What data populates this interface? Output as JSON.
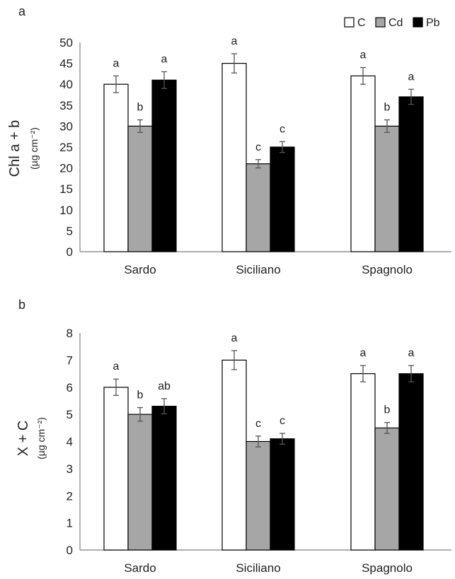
{
  "legend": {
    "items": [
      {
        "label": "C",
        "color": "#ffffff"
      },
      {
        "label": "Cd",
        "color": "#a6a6a6"
      },
      {
        "label": "Pb",
        "color": "#000000"
      }
    ]
  },
  "chart_data": [
    {
      "type": "bar",
      "panel_label": "a",
      "ylabel": "Chl a + b",
      "ylabel_unit": "(µg cm⁻²)",
      "ylim": [
        0,
        50
      ],
      "yticks": [
        "0",
        "5",
        "10",
        "15",
        "20",
        "25",
        "30",
        "35",
        "40",
        "45",
        "50"
      ],
      "categories": [
        "Sardo",
        "Siciliano",
        "Spagnolo"
      ],
      "series": [
        {
          "name": "C",
          "values": [
            40,
            45,
            42
          ],
          "errors": [
            2,
            2.3,
            2
          ],
          "letters": [
            "a",
            "a",
            "a"
          ]
        },
        {
          "name": "Cd",
          "values": [
            30,
            21,
            30
          ],
          "errors": [
            1.5,
            1,
            1.5
          ],
          "letters": [
            "b",
            "c",
            "b"
          ]
        },
        {
          "name": "Pb",
          "values": [
            41,
            25,
            37
          ],
          "errors": [
            2,
            1.3,
            1.8
          ],
          "letters": [
            "a",
            "c",
            "a"
          ]
        }
      ]
    },
    {
      "type": "bar",
      "panel_label": "b",
      "ylabel": "X + C",
      "ylabel_unit": "(µg cm⁻²)",
      "ylim": [
        0,
        8
      ],
      "yticks": [
        "0",
        "1",
        "2",
        "3",
        "4",
        "5",
        "6",
        "7",
        "8"
      ],
      "categories": [
        "Sardo",
        "Siciliano",
        "Spagnolo"
      ],
      "series": [
        {
          "name": "C",
          "values": [
            6,
            7,
            6.5
          ],
          "errors": [
            0.3,
            0.35,
            0.3
          ],
          "letters": [
            "a",
            "a",
            "a"
          ]
        },
        {
          "name": "Cd",
          "values": [
            5,
            4,
            4.5
          ],
          "errors": [
            0.25,
            0.2,
            0.2
          ],
          "letters": [
            "b",
            "c",
            "b"
          ]
        },
        {
          "name": "Pb",
          "values": [
            5.3,
            4.1,
            6.5
          ],
          "errors": [
            0.28,
            0.2,
            0.3
          ],
          "letters": [
            "ab",
            "c",
            "a"
          ]
        }
      ]
    }
  ]
}
